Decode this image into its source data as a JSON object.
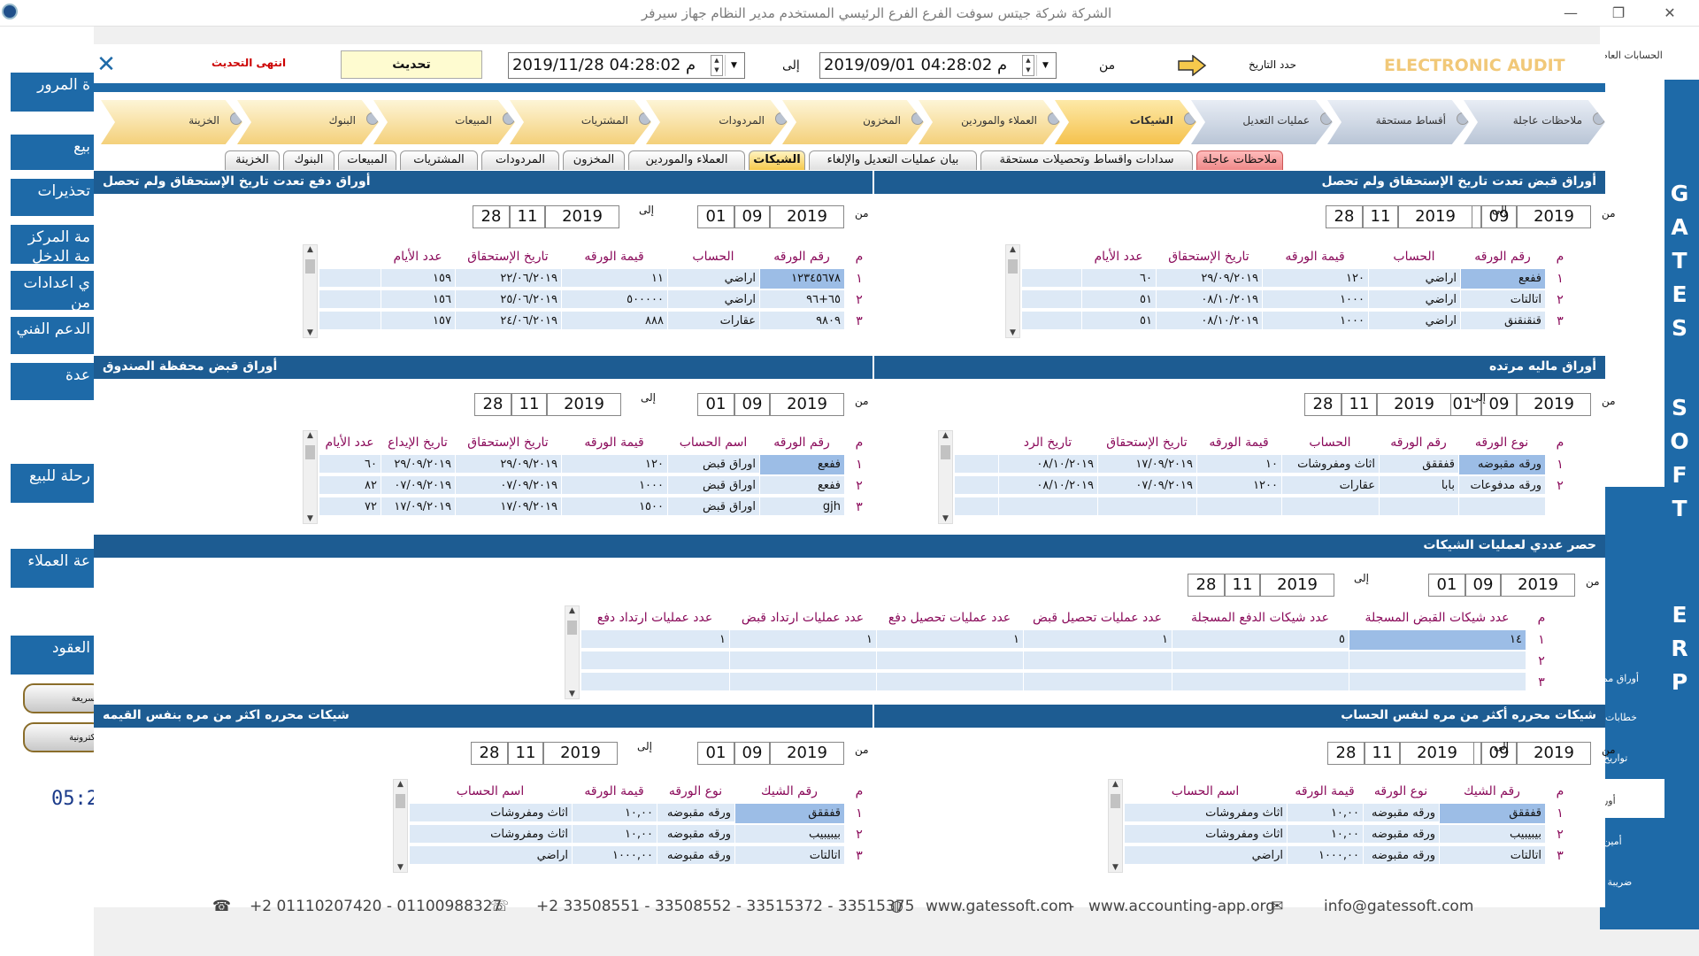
{
  "titlebar": {
    "title": "الشركة شركة جيتس سوفت     الفرع الفرع الرئيسي     المستخدم مدير النظام     جهاز سيرفر"
  },
  "left_sidebar": [
    "ة المرور",
    "بيع",
    "تحذيرات",
    "مة المركز\nمة الدخل",
    "ي اعدادات\nمن",
    "الدعم الفني",
    "عدة",
    "رحلة للبيع",
    "عة العملاء",
    "العقود"
  ],
  "left_pills": [
    "السريعة",
    "الكترونية"
  ],
  "clock": "05:2",
  "right_letters": [
    "G",
    "A",
    "T",
    "E",
    "S",
    "S",
    "O",
    "F",
    "T",
    "E",
    "R",
    "P"
  ],
  "right_side_labels": [
    "الحسابات العام",
    "أوراد",
    "أوراق مم",
    "خطابات",
    "تواريخ",
    "أور",
    "أمين",
    "ضريبة ا"
  ],
  "topbar": {
    "brand": "ELECTRONIC AUDIT",
    "period_label": "حدد التاريخ",
    "from_label": "من",
    "to_label": "إلى",
    "date_from": "2019/09/01 04:28:02",
    "date_to": "2019/11/28 04:28:02",
    "ampm": "م",
    "refresh_button": "تحديث",
    "status": "انتهى التحديث"
  },
  "stages": [
    "ملاحظات عاجلة",
    "أقساط مستحقة",
    "عمليات التعديل",
    "الشيكات",
    "العملاء والموردين",
    "المخزون",
    "المردودات",
    "المشتريات",
    "المبيعات",
    "البنوك",
    "الخزينة"
  ],
  "tabs": [
    "ملاحظات عاجلة",
    "سدادات واقساط  وتحصيلات مستحقة",
    "بيان عمليات التعديل والإلغاء",
    "الشيكات",
    "العملاء والموردين",
    "المخزون",
    "المردودات",
    "المشتريات",
    "المبيعات",
    "البنوك",
    "الخزينة"
  ],
  "range_from": [
    "01",
    "09",
    "2019"
  ],
  "range_to": [
    "28",
    "11",
    "2019"
  ],
  "sections": {
    "s1": {
      "title": "أوراق قبض تعدت تاريخ الإستحقاق ولم تحصل",
      "headers": [
        "م",
        "رقم الورقه",
        "الحساب",
        "قيمة الورقه",
        "تاريخ الإستحقاق",
        "عدد الأيام"
      ],
      "rows": [
        [
          "١",
          "ففعع",
          "اراضي",
          "١٢٠",
          "٢٩/٠٩/٢٠١٩",
          "٦٠"
        ],
        [
          "٢",
          "اتالتات",
          "اراضي",
          "١٠٠٠",
          "٠٨/١٠/٢٠١٩",
          "٥١"
        ],
        [
          "٣",
          "قنقنقنق",
          "اراضي",
          "١٠٠٠",
          "٠٨/١٠/٢٠١٩",
          "٥١"
        ]
      ]
    },
    "s2": {
      "title": "أوراق دفع تعدت تاريخ الإستحقاق ولم تحصل",
      "headers": [
        "م",
        "رقم الورقه",
        "الحساب",
        "قيمة الورقه",
        "تاريخ الإستحقاق",
        "عدد الأيام"
      ],
      "rows": [
        [
          "١",
          "١٢٣٤٥٦٧٨",
          "اراضي",
          "١١",
          "٢٢/٠٦/٢٠١٩",
          "١٥٩"
        ],
        [
          "٢",
          "٦٥+٩٦",
          "اراضي",
          "٥٠٠٠٠٠",
          "٢٥/٠٦/٢٠١٩",
          "١٥٦"
        ],
        [
          "٣",
          "٩٨٠٩",
          "عقارات",
          "٨٨٨",
          "٢٤/٠٦/٢٠١٩",
          "١٥٧"
        ]
      ]
    },
    "s3": {
      "title": "أوراق ماليه مرتده",
      "headers": [
        "م",
        "نوع الورقه",
        "رقم الورقه",
        "الحساب",
        "قيمة الورقه",
        "تاريخ الإستحقاق",
        "تاريخ الرد"
      ],
      "rows": [
        [
          "١",
          "ورقه مقبوضه",
          "قفققق",
          "اثاث ومفروشات",
          "١٠",
          "١٧/٠٩/٢٠١٩",
          "٠٨/١٠/٢٠١٩"
        ],
        [
          "٢",
          "ورقه مدفوعات",
          "بابا",
          "عقارات",
          "١٢٠٠",
          "٠٧/٠٩/٢٠١٩",
          "٠٨/١٠/٢٠١٩"
        ]
      ]
    },
    "s4": {
      "title": "أوراق قبض محفظة الصندوق",
      "headers": [
        "م",
        "رقم الورقه",
        "اسم الحساب",
        "قيمة الورقه",
        "تاريخ الإستحقاق",
        "تاريخ الإيداع",
        "عدد الأيام"
      ],
      "rows": [
        [
          "١",
          "ففعع",
          "اوراق قبض",
          "١٢٠",
          "٢٩/٠٩/٢٠١٩",
          "٢٩/٠٩/٢٠١٩",
          "٦٠"
        ],
        [
          "٢",
          "ففعع",
          "اوراق قبض",
          "١٠٠٠",
          "٠٧/٠٩/٢٠١٩",
          "٠٧/٠٩/٢٠١٩",
          "٨٢"
        ],
        [
          "٣",
          "gjh",
          "اوراق قبض",
          "١٥٠٠",
          "١٧/٠٩/٢٠١٩",
          "١٧/٠٩/٢٠١٩",
          "٧٢"
        ]
      ]
    },
    "s5": {
      "title": "حصر عددي لعمليات الشيكات",
      "headers": [
        "م",
        "عدد شيكات القبض المسجلة",
        "عدد شيكات الدفع المسجلة",
        "عدد عمليات تحصيل قبض",
        "عدد عمليات تحصيل دفع",
        "عدد عمليات ارتداد قبض",
        "عدد عمليات ارتداد دفع"
      ],
      "rows": [
        [
          "١",
          "١٤",
          "٥",
          "١",
          "١",
          "١",
          "١"
        ],
        [
          "٢",
          "",
          "",
          "",
          "",
          "",
          ""
        ],
        [
          "٣",
          "",
          "",
          "",
          "",
          "",
          ""
        ]
      ]
    },
    "s6": {
      "title": "شيكات محرره أكثر من مره لنفس الحساب",
      "headers": [
        "م",
        "رقم الشيك",
        "نوع الورقه",
        "قيمة الورقه",
        "اسم الحساب"
      ],
      "rows": [
        [
          "١",
          "قفققق",
          "ورقه مقبوضه",
          "١٠,٠٠",
          "اثاث ومفروشات"
        ],
        [
          "٢",
          "بيبيبيب",
          "ورقه مقبوضه",
          "١٠,٠٠",
          "اثاث ومفروشات"
        ],
        [
          "٣",
          "اتالتات",
          "ورقه مقبوضه",
          "١٠٠٠,٠٠",
          "اراضي"
        ]
      ]
    },
    "s7": {
      "title": "شيكات محرره اكثر من مره بنفس القيمه",
      "headers": [
        "م",
        "رقم الشيك",
        "نوع الورقه",
        "قيمة الورقه",
        "اسم الحساب"
      ],
      "rows": [
        [
          "١",
          "قفققق",
          "ورقه مقبوضه",
          "١٠,٠٠",
          "اثاث ومفروشات"
        ],
        [
          "٢",
          "بيبيبيب",
          "ورقه مقبوضه",
          "١٠,٠٠",
          "اثاث ومفروشات"
        ],
        [
          "٣",
          "اتالتات",
          "ورقه مقبوضه",
          "١٠٠٠,٠٠",
          "اراضي"
        ]
      ]
    }
  },
  "footer": {
    "phones": "+2 01110207420 - 01100988327",
    "landlines": "+2 33508551 - 33508552 - 33515372 - 33515375",
    "web1": "www.gatessoft.com",
    "sep": "-",
    "web2": "www.accounting-app.org",
    "email": "info@gatessoft.com"
  },
  "colors": {
    "header_blue": "#1d5c92",
    "side_blue": "#1e6aa8",
    "header_text": "#8a0a5a",
    "row_bg": "#dde9f6",
    "sel_cell": "#9cbde6"
  }
}
